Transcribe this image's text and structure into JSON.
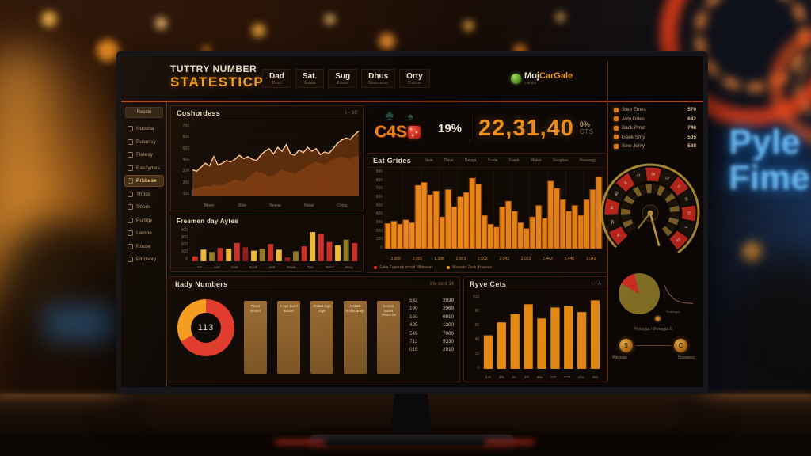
{
  "header": {
    "title_line1": "TUTTRY NUMBER",
    "title_line2": "STATESTICP",
    "tabs": [
      {
        "label": "Dad",
        "sub": "Drim"
      },
      {
        "label": "Sat.",
        "sub": "Shade"
      },
      {
        "label": "Sug",
        "sub": "Exeter"
      },
      {
        "label": "Dhus",
        "sub": "Diamonse"
      },
      {
        "label": "Orty",
        "sub": "Theme"
      }
    ],
    "logo_text_left": "Moj",
    "logo_text_right": "CarGale",
    "logo_sub": "o amba"
  },
  "background": {
    "neon_line1": "Pyle",
    "neon_line2": "Fime"
  },
  "sidebar": {
    "top_button": "Resste",
    "active_index": 4,
    "items": [
      "Nuosha",
      "Pubessy",
      "Flatesy",
      "Bassymes",
      "Prbbese",
      "Thoss",
      "Shoes",
      "Purtigy",
      "Lambe",
      "Rouse",
      "Pindsory"
    ]
  },
  "kpi": {
    "brand": "C4S",
    "percent": "19%",
    "numbers": "22,31,40",
    "sub_top": "0%",
    "sub_bottom": "CTS"
  },
  "stats_list": [
    {
      "label": "Stee Emes",
      "value": "570"
    },
    {
      "label": "Avty Drtes",
      "value": "642"
    },
    {
      "label": "Back Pmst",
      "value": "748"
    },
    {
      "label": "Geek Smy",
      "value": "505"
    },
    {
      "label": "Sew Jemy",
      "value": "580"
    }
  ],
  "panels": {
    "trend": {
      "title": "Coshordess",
      "meta": "l.~  30"
    },
    "freq": {
      "title": "Freemen day Aytes"
    },
    "daily": {
      "title": "Itady Numbers",
      "meta": "the cont   14"
    },
    "grides": {
      "title": "Eat Grides",
      "columns": [
        "Nevt",
        "Dave",
        "Devga",
        "Suste",
        "Favet",
        "Mutes",
        "Soughes",
        "Peesegg"
      ]
    },
    "rate": {
      "title": "Ryve Cets",
      "meta": "l.~  A"
    },
    "mini": {
      "label": "Rwstsgps"
    },
    "coins": {
      "title": "Prytayga / Dwtagga D",
      "left_symbol": "$",
      "right_symbol": "C",
      "left_label": "Wesows",
      "right_label": "Srsswess"
    }
  },
  "daily_numbers": {
    "donut_center": "113",
    "cards": [
      "Peset Nesmt",
      "A-sye Burst atSGA",
      "Rstaat sugt Ztge",
      "Mstaat kTses areyt",
      "Sesets suses Ytrees tst"
    ],
    "pairs": [
      [
        "532",
        "2039"
      ],
      [
        "190",
        "2969"
      ],
      [
        "150",
        "0910"
      ],
      [
        "425",
        "1300"
      ],
      [
        "549",
        "7000"
      ],
      [
        "713",
        "5330"
      ],
      [
        "015",
        "2910"
      ]
    ]
  },
  "chart_data": [
    {
      "id": "trend",
      "type": "area",
      "title": "Coshordess",
      "y_ticks": [
        "700",
        "600",
        "500",
        "400",
        "300",
        "200",
        "100"
      ],
      "x_labels": [
        "Bever",
        "30xe",
        "Neese",
        "Natal",
        "Cross"
      ],
      "ylim": [
        0,
        110
      ],
      "series": [
        {
          "name": "primary",
          "values": [
            40,
            38,
            44,
            50,
            46,
            60,
            47,
            50,
            54,
            52,
            56,
            62,
            57,
            60,
            56,
            54,
            62,
            68,
            72,
            64,
            74,
            68,
            78,
            64,
            62,
            70,
            66,
            74,
            68,
            72,
            63,
            67,
            65,
            72,
            80,
            85,
            88,
            86,
            93,
            99
          ]
        },
        {
          "name": "secondary",
          "values": [
            12,
            12,
            14,
            16,
            15,
            18,
            16,
            17,
            20,
            22,
            26,
            24,
            22,
            28,
            34,
            38,
            36,
            34,
            30,
            32,
            36,
            40,
            38,
            36,
            34,
            38,
            42,
            46,
            50,
            52,
            50,
            48,
            52,
            56,
            58,
            60,
            58,
            56,
            60,
            62
          ]
        }
      ]
    },
    {
      "id": "freq",
      "type": "bar",
      "title": "Freemen day Aytes",
      "y_ticks": [
        "400",
        "300",
        "200",
        "100",
        "0"
      ],
      "x_labels": [
        "Jae",
        "Awt",
        "Iceb",
        "Eyak",
        "Arst",
        "Wase",
        "Tjac",
        "Tebal",
        "Parg"
      ],
      "ylim": [
        0,
        100
      ],
      "values": [
        15,
        35,
        28,
        40,
        38,
        55,
        42,
        32,
        38,
        52,
        35,
        12,
        30,
        45,
        88,
        82,
        58,
        48,
        65,
        55
      ],
      "colors": [
        "red",
        "yellow",
        "olive",
        "red",
        "yellow",
        "red",
        "darkred",
        "yellow",
        "olive",
        "red",
        "yellow",
        "darkred",
        "olive",
        "red",
        "yellow",
        "red",
        "red",
        "yellow",
        "olive",
        "red"
      ],
      "palette": {
        "red": "#c9302a",
        "darkred": "#8f1f1a",
        "yellow": "#f0b838",
        "olive": "#8f7a28"
      }
    },
    {
      "id": "grides",
      "type": "bar",
      "title": "Eat Grides",
      "y_ticks": [
        "900",
        "800",
        "700",
        "600",
        "500",
        "400",
        "300",
        "200",
        "100",
        "0"
      ],
      "x_labels": [
        "2,005",
        "2,001",
        "1,398",
        "2,003",
        "2,503",
        "2,043",
        "2,023",
        "2,443",
        "5,448",
        "3,043"
      ],
      "ylim": [
        0,
        110
      ],
      "values": [
        35,
        38,
        34,
        40,
        36,
        88,
        92,
        75,
        80,
        44,
        82,
        58,
        72,
        78,
        98,
        90,
        46,
        34,
        30,
        58,
        66,
        52,
        36,
        28,
        44,
        60,
        42,
        94,
        84,
        68,
        52,
        60,
        46,
        68,
        82,
        100
      ],
      "bar_color": "#f18a16",
      "legend": [
        {
          "label": "Saka Faperds proud Mhtseser",
          "color": "#e0392b"
        },
        {
          "label": "Mseuter Zevk Yrasese",
          "color": "#f5a623"
        }
      ]
    },
    {
      "id": "donut",
      "type": "donut",
      "center_label": "113",
      "slices": [
        {
          "name": "red",
          "value": 67,
          "color": "#e23b2e"
        },
        {
          "name": "orange",
          "value": 33,
          "color": "#f59d20"
        }
      ]
    },
    {
      "id": "rate",
      "type": "bar",
      "title": "Ryve Cets",
      "y_ticks": [
        "100",
        "80",
        "60",
        "40",
        "20",
        "0"
      ],
      "x_labels": [
        "47s",
        "4Ts",
        "9A",
        "4Tr",
        "89e",
        "235",
        "5T9",
        "47w",
        "256"
      ],
      "ylim": [
        0,
        115
      ],
      "values": [
        52,
        72,
        85,
        100,
        78,
        95,
        97,
        88,
        106
      ],
      "bar_color": "#f59416"
    },
    {
      "id": "mini_pie",
      "type": "pie",
      "start_angle": 300,
      "slices": [
        {
          "name": "red",
          "value": 13,
          "color": "#e03026"
        },
        {
          "name": "olive",
          "value": 87,
          "color": "#8f7a28"
        }
      ]
    },
    {
      "id": "mini_trend",
      "type": "line",
      "values": [
        62,
        40,
        28,
        20,
        16,
        14,
        13,
        12
      ]
    },
    {
      "id": "gauge",
      "type": "gauge",
      "segments": [
        "8",
        "29",
        "III",
        "40",
        "E",
        "17",
        "24",
        "12",
        "5",
        "31",
        "20",
        "1",
        "33"
      ],
      "colors_alternate": [
        "#c5281c",
        "#1a120a"
      ]
    }
  ]
}
